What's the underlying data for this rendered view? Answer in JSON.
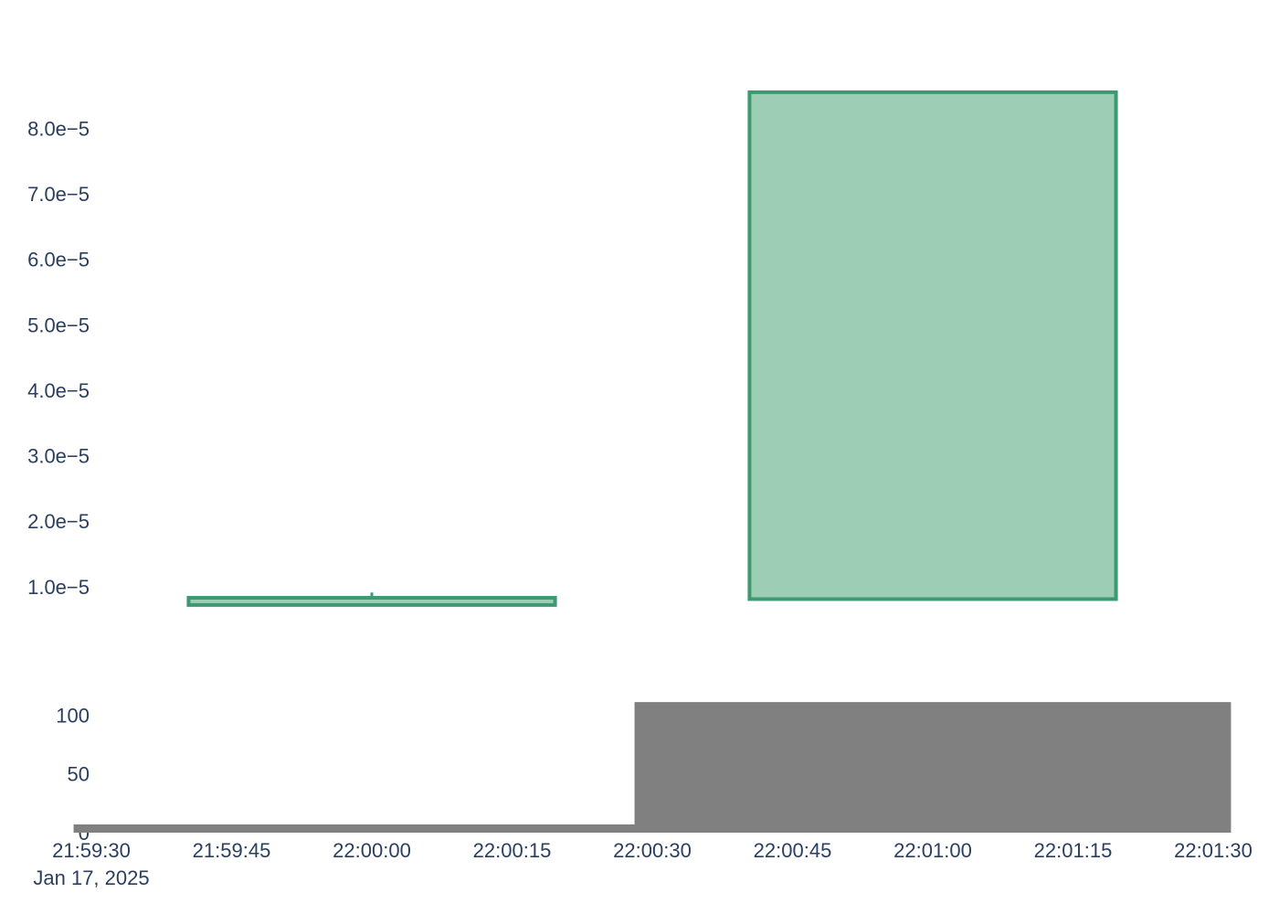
{
  "chart_data": {
    "type": "candlestick",
    "date_label": "Jan 17, 2025",
    "x_ticks": [
      "21:59:30",
      "21:59:45",
      "22:00:00",
      "22:00:15",
      "22:00:30",
      "22:00:45",
      "22:01:00",
      "22:01:15",
      "22:01:30"
    ],
    "x_range": [
      "21:59:30",
      "22:01:30"
    ],
    "price": {
      "y_ticks": [
        "1.0e−5",
        "2.0e−5",
        "3.0e−5",
        "4.0e−5",
        "5.0e−5",
        "6.0e−5",
        "7.0e−5",
        "8.0e−5"
      ],
      "y_tick_values": [
        1e-05,
        2e-05,
        3e-05,
        4e-05,
        5e-05,
        6e-05,
        7e-05,
        8e-05
      ],
      "ylim": [
        -3e-06,
        9.4e-05
      ],
      "increasing_color": "#3d9970",
      "increasing_fill": "#9ecdb6",
      "candles": [
        {
          "time": "22:00:00",
          "open": 7.2e-06,
          "high": 9.1e-06,
          "low": 7.2e-06,
          "close": 8.3e-06
        },
        {
          "time": "22:01:00",
          "open": 8.1e-06,
          "high": 8.55e-05,
          "low": 8.1e-06,
          "close": 8.55e-05
        }
      ]
    },
    "volume": {
      "y_ticks": [
        "0",
        "50",
        "100"
      ],
      "y_tick_values": [
        0,
        50,
        100
      ],
      "ylim": [
        0,
        115
      ],
      "color": "#808080",
      "bars": [
        {
          "time": "22:00:00",
          "value": 7
        },
        {
          "time": "22:01:00",
          "value": 111
        }
      ]
    },
    "grid": false,
    "legend": "none"
  }
}
